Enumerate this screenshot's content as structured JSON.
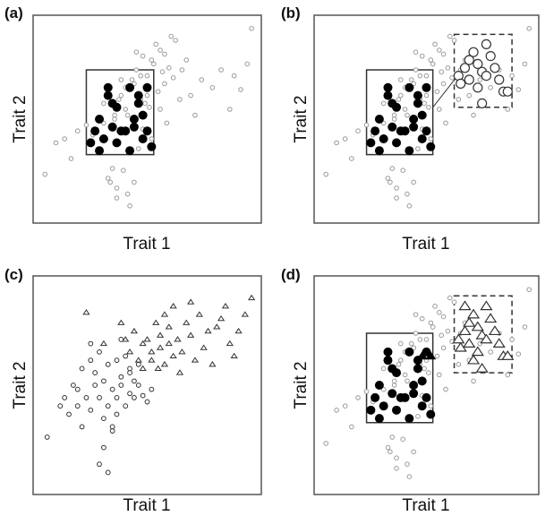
{
  "figure": {
    "colors": {
      "frame": "#555555",
      "background_point": "#9a9a9a",
      "focal_point": "#000000",
      "open_marker": "#333333",
      "box": "#333333"
    }
  },
  "chart_data": [
    {
      "panel": "(a)",
      "type": "scatter",
      "xlabel": "Trait 1",
      "ylabel": "Trait 2",
      "xlim": [
        0,
        100
      ],
      "ylim": [
        0,
        100
      ],
      "grid": false,
      "series": [
        {
          "role": "population",
          "marker": "small-open-circle",
          "color": "#9a9a9a",
          "x": [
            3,
            8,
            12,
            15,
            18,
            22,
            25,
            28,
            30,
            30,
            32,
            34,
            35,
            36,
            38,
            38,
            40,
            41,
            43,
            44,
            45,
            46,
            47,
            48,
            48,
            50,
            51,
            52,
            53,
            55,
            56,
            57,
            58,
            60,
            62,
            65,
            68,
            70,
            72,
            75,
            80,
            84,
            88,
            90,
            93,
            96,
            98,
            33,
            36,
            39,
            42,
            44,
            49,
            54,
            58,
            61,
            63,
            66,
            45,
            37,
            40,
            35,
            43,
            47,
            50,
            56,
            59,
            52,
            46,
            41
          ],
          "y": [
            22,
            38,
            40,
            30,
            44,
            47,
            42,
            35,
            48,
            58,
            20,
            25,
            52,
            15,
            62,
            70,
            55,
            12,
            66,
            18,
            75,
            63,
            60,
            45,
            82,
            72,
            56,
            80,
            78,
            64,
            85,
            74,
            68,
            76,
            71,
            60,
            80,
            62,
            52,
            70,
            66,
            75,
            55,
            72,
            65,
            78,
            96,
            18,
            10,
            24,
            6,
            68,
            58,
            88,
            83,
            92,
            90,
            75,
            84,
            60,
            66,
            50,
            70,
            72,
            62,
            55,
            48,
            40,
            35,
            52
          ]
        },
        {
          "role": "selected",
          "marker": "filled-circle",
          "color": "#000000",
          "x": [
            24,
            26,
            28,
            30,
            32,
            32,
            34,
            36,
            36,
            38,
            40,
            42,
            42,
            44,
            46,
            46,
            48,
            48,
            50,
            50,
            52,
            28,
            34,
            44
          ],
          "y": [
            38,
            44,
            50,
            40,
            62,
            66,
            46,
            38,
            56,
            44,
            44,
            34,
            66,
            50,
            58,
            62,
            40,
            52,
            66,
            44,
            36,
            34,
            58,
            46
          ]
        }
      ],
      "annotations": [
        {
          "type": "rectangle",
          "style": "solid",
          "x": [
            22,
            53
          ],
          "y": [
            32,
            75
          ]
        }
      ]
    },
    {
      "panel": "(b)",
      "type": "scatter",
      "xlabel": "Trait 1",
      "ylabel": "Trait 2",
      "xlim": [
        0,
        100
      ],
      "ylim": [
        0,
        100
      ],
      "grid": false,
      "series": [
        {
          "role": "population",
          "marker": "small-open-circle",
          "color": "#9a9a9a",
          "x": [
            3,
            8,
            12,
            15,
            18,
            22,
            25,
            28,
            30,
            30,
            32,
            34,
            35,
            36,
            38,
            38,
            40,
            41,
            43,
            44,
            45,
            46,
            47,
            48,
            48,
            50,
            51,
            52,
            53,
            55,
            56,
            57,
            58,
            60,
            62,
            65,
            68,
            70,
            72,
            75,
            80,
            84,
            88,
            90,
            93,
            96,
            98,
            33,
            36,
            39,
            42,
            44,
            49,
            54,
            58,
            61,
            63,
            66,
            45,
            37,
            40,
            35,
            43,
            47,
            50,
            56,
            59,
            52,
            46,
            41
          ],
          "y": [
            22,
            38,
            40,
            30,
            44,
            47,
            42,
            35,
            48,
            58,
            20,
            25,
            52,
            15,
            62,
            70,
            55,
            12,
            66,
            18,
            75,
            63,
            60,
            45,
            82,
            72,
            56,
            80,
            78,
            64,
            85,
            74,
            68,
            76,
            71,
            60,
            80,
            62,
            52,
            70,
            66,
            75,
            55,
            72,
            65,
            78,
            96,
            18,
            10,
            24,
            6,
            68,
            58,
            88,
            83,
            92,
            90,
            75,
            84,
            60,
            66,
            50,
            70,
            72,
            62,
            55,
            48,
            40,
            35,
            52
          ]
        },
        {
          "role": "selected",
          "marker": "filled-circle",
          "color": "#000000",
          "x": [
            24,
            26,
            28,
            30,
            32,
            32,
            34,
            36,
            36,
            38,
            40,
            42,
            42,
            44,
            46,
            46,
            48,
            48,
            50,
            50,
            52,
            28,
            34,
            44
          ],
          "y": [
            38,
            44,
            50,
            40,
            62,
            66,
            46,
            38,
            56,
            44,
            44,
            34,
            66,
            50,
            58,
            62,
            40,
            52,
            66,
            44,
            36,
            34,
            58,
            46
          ]
        },
        {
          "role": "selected-offspring",
          "marker": "large-open-circle",
          "color": "#333333",
          "x": [
            65,
            68,
            70,
            72,
            74,
            76,
            78,
            80,
            82,
            84,
            66,
            70,
            74,
            78,
            86,
            88,
            76
          ],
          "y": [
            72,
            76,
            80,
            84,
            78,
            74,
            88,
            82,
            76,
            70,
            68,
            70,
            66,
            72,
            64,
            64,
            58
          ]
        }
      ],
      "annotations": [
        {
          "type": "rectangle",
          "style": "solid",
          "x": [
            22,
            53
          ],
          "y": [
            32,
            75
          ]
        },
        {
          "type": "rectangle",
          "style": "dashed",
          "x": [
            63,
            90
          ],
          "y": [
            56,
            93
          ]
        },
        {
          "type": "line",
          "from": [
            53,
            56
          ],
          "to": [
            66,
            74
          ]
        }
      ]
    },
    {
      "panel": "(c)",
      "type": "scatter",
      "xlabel": "Trait 1",
      "ylabel": "Trait 2",
      "xlim": [
        0,
        100
      ],
      "ylim": [
        0,
        100
      ],
      "grid": false,
      "series": [
        {
          "marker": "open-circle",
          "color": "#333333",
          "x": [
            4,
            10,
            12,
            14,
            16,
            18,
            18,
            20,
            22,
            24,
            24,
            26,
            26,
            28,
            28,
            30,
            30,
            32,
            32,
            34,
            34,
            36,
            36,
            38,
            38,
            40,
            40,
            42,
            42,
            44,
            44,
            46,
            46,
            30,
            28,
            34,
            48,
            50,
            52,
            20,
            24,
            38,
            42,
            36,
            32
          ],
          "y": [
            25,
            40,
            44,
            36,
            50,
            48,
            40,
            58,
            44,
            38,
            62,
            50,
            56,
            44,
            66,
            34,
            52,
            40,
            60,
            48,
            30,
            44,
            62,
            50,
            54,
            40,
            64,
            46,
            58,
            52,
            44,
            50,
            60,
            20,
            12,
            28,
            45,
            42,
            48,
            30,
            70,
            72,
            56,
            36,
            8
          ]
        },
        {
          "marker": "open-triangle",
          "color": "#333333",
          "x": [
            22,
            30,
            38,
            40,
            42,
            44,
            46,
            48,
            48,
            50,
            52,
            52,
            54,
            56,
            56,
            58,
            58,
            60,
            60,
            62,
            62,
            64,
            66,
            68,
            70,
            70,
            72,
            74,
            76,
            78,
            80,
            82,
            84,
            86,
            88,
            90,
            92,
            95,
            98,
            55,
            65
          ],
          "y": [
            85,
            70,
            80,
            72,
            66,
            76,
            62,
            70,
            58,
            72,
            66,
            62,
            80,
            68,
            74,
            60,
            84,
            70,
            78,
            64,
            88,
            72,
            66,
            80,
            74,
            90,
            62,
            84,
            68,
            76,
            60,
            78,
            82,
            88,
            70,
            64,
            76,
            84,
            92,
            58,
            56
          ]
        }
      ]
    },
    {
      "panel": "(d)",
      "type": "scatter",
      "xlabel": "Trait 1",
      "ylabel": "Trait 2",
      "xlim": [
        0,
        100
      ],
      "ylim": [
        0,
        100
      ],
      "grid": false,
      "series": [
        {
          "role": "population",
          "marker": "small-open-circle",
          "color": "#9a9a9a",
          "x": [
            3,
            8,
            12,
            15,
            18,
            22,
            25,
            28,
            30,
            30,
            32,
            34,
            35,
            36,
            38,
            38,
            40,
            41,
            43,
            44,
            45,
            46,
            47,
            48,
            48,
            50,
            51,
            52,
            53,
            55,
            56,
            57,
            58,
            60,
            62,
            65,
            68,
            70,
            72,
            75,
            80,
            84,
            88,
            90,
            93,
            96,
            98,
            33,
            36,
            39,
            42,
            44,
            49,
            54,
            58,
            61,
            63,
            66,
            45,
            37,
            40,
            35,
            43,
            47,
            50,
            56,
            59,
            52,
            46,
            41
          ],
          "y": [
            22,
            38,
            40,
            30,
            44,
            47,
            42,
            35,
            48,
            58,
            20,
            25,
            52,
            15,
            62,
            70,
            55,
            12,
            66,
            18,
            75,
            63,
            60,
            45,
            82,
            72,
            56,
            80,
            78,
            64,
            85,
            74,
            68,
            76,
            71,
            60,
            80,
            62,
            52,
            70,
            66,
            75,
            55,
            72,
            65,
            78,
            96,
            18,
            10,
            24,
            6,
            68,
            58,
            88,
            83,
            92,
            90,
            75,
            84,
            60,
            66,
            50,
            70,
            72,
            62,
            55,
            48,
            40,
            35,
            52
          ]
        },
        {
          "role": "selected",
          "marker": "filled-circle",
          "color": "#000000",
          "x": [
            24,
            26,
            28,
            30,
            32,
            32,
            34,
            36,
            36,
            38,
            40,
            42,
            42,
            44,
            46,
            46,
            48,
            48,
            50,
            50,
            52,
            28,
            34,
            44
          ],
          "y": [
            38,
            44,
            50,
            40,
            62,
            66,
            46,
            38,
            56,
            44,
            44,
            34,
            66,
            50,
            58,
            62,
            40,
            52,
            66,
            44,
            36,
            34,
            58,
            46
          ]
        },
        {
          "role": "selected-triangles",
          "marker": "filled-triangle",
          "color": "#000000",
          "x": [
            48,
            52
          ],
          "y": [
            64,
            64
          ]
        },
        {
          "role": "offspring",
          "marker": "large-open-triangle",
          "color": "#333333",
          "x": [
            65,
            68,
            70,
            72,
            74,
            76,
            78,
            80,
            82,
            84,
            66,
            70,
            74,
            78,
            86,
            88,
            76,
            68,
            72
          ],
          "y": [
            72,
            76,
            80,
            84,
            78,
            74,
            88,
            82,
            76,
            70,
            68,
            70,
            66,
            72,
            64,
            64,
            58,
            88,
            62
          ]
        }
      ],
      "annotations": [
        {
          "type": "rectangle",
          "style": "solid",
          "x": [
            22,
            53
          ],
          "y": [
            32,
            75
          ]
        },
        {
          "type": "rectangle",
          "style": "dashed",
          "x": [
            63,
            90
          ],
          "y": [
            56,
            93
          ]
        }
      ]
    }
  ]
}
